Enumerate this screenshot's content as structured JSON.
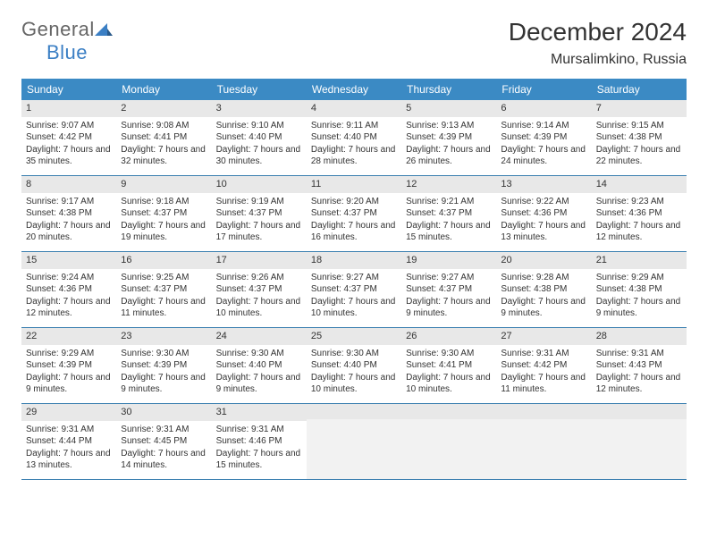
{
  "logo": {
    "text1": "General",
    "text2": "Blue"
  },
  "title": "December 2024",
  "location": "Mursalimkino, Russia",
  "colors": {
    "header_bg": "#3b8ac4",
    "header_text": "#ffffff",
    "daynum_bg": "#e8e8e8",
    "border": "#3b7fb0",
    "text": "#333333",
    "logo_blue": "#3b7fc4"
  },
  "dayHeaders": [
    "Sunday",
    "Monday",
    "Tuesday",
    "Wednesday",
    "Thursday",
    "Friday",
    "Saturday"
  ],
  "weeks": [
    [
      {
        "num": "1",
        "sunrise": "Sunrise: 9:07 AM",
        "sunset": "Sunset: 4:42 PM",
        "daylight": "Daylight: 7 hours and 35 minutes."
      },
      {
        "num": "2",
        "sunrise": "Sunrise: 9:08 AM",
        "sunset": "Sunset: 4:41 PM",
        "daylight": "Daylight: 7 hours and 32 minutes."
      },
      {
        "num": "3",
        "sunrise": "Sunrise: 9:10 AM",
        "sunset": "Sunset: 4:40 PM",
        "daylight": "Daylight: 7 hours and 30 minutes."
      },
      {
        "num": "4",
        "sunrise": "Sunrise: 9:11 AM",
        "sunset": "Sunset: 4:40 PM",
        "daylight": "Daylight: 7 hours and 28 minutes."
      },
      {
        "num": "5",
        "sunrise": "Sunrise: 9:13 AM",
        "sunset": "Sunset: 4:39 PM",
        "daylight": "Daylight: 7 hours and 26 minutes."
      },
      {
        "num": "6",
        "sunrise": "Sunrise: 9:14 AM",
        "sunset": "Sunset: 4:39 PM",
        "daylight": "Daylight: 7 hours and 24 minutes."
      },
      {
        "num": "7",
        "sunrise": "Sunrise: 9:15 AM",
        "sunset": "Sunset: 4:38 PM",
        "daylight": "Daylight: 7 hours and 22 minutes."
      }
    ],
    [
      {
        "num": "8",
        "sunrise": "Sunrise: 9:17 AM",
        "sunset": "Sunset: 4:38 PM",
        "daylight": "Daylight: 7 hours and 20 minutes."
      },
      {
        "num": "9",
        "sunrise": "Sunrise: 9:18 AM",
        "sunset": "Sunset: 4:37 PM",
        "daylight": "Daylight: 7 hours and 19 minutes."
      },
      {
        "num": "10",
        "sunrise": "Sunrise: 9:19 AM",
        "sunset": "Sunset: 4:37 PM",
        "daylight": "Daylight: 7 hours and 17 minutes."
      },
      {
        "num": "11",
        "sunrise": "Sunrise: 9:20 AM",
        "sunset": "Sunset: 4:37 PM",
        "daylight": "Daylight: 7 hours and 16 minutes."
      },
      {
        "num": "12",
        "sunrise": "Sunrise: 9:21 AM",
        "sunset": "Sunset: 4:37 PM",
        "daylight": "Daylight: 7 hours and 15 minutes."
      },
      {
        "num": "13",
        "sunrise": "Sunrise: 9:22 AM",
        "sunset": "Sunset: 4:36 PM",
        "daylight": "Daylight: 7 hours and 13 minutes."
      },
      {
        "num": "14",
        "sunrise": "Sunrise: 9:23 AM",
        "sunset": "Sunset: 4:36 PM",
        "daylight": "Daylight: 7 hours and 12 minutes."
      }
    ],
    [
      {
        "num": "15",
        "sunrise": "Sunrise: 9:24 AM",
        "sunset": "Sunset: 4:36 PM",
        "daylight": "Daylight: 7 hours and 12 minutes."
      },
      {
        "num": "16",
        "sunrise": "Sunrise: 9:25 AM",
        "sunset": "Sunset: 4:37 PM",
        "daylight": "Daylight: 7 hours and 11 minutes."
      },
      {
        "num": "17",
        "sunrise": "Sunrise: 9:26 AM",
        "sunset": "Sunset: 4:37 PM",
        "daylight": "Daylight: 7 hours and 10 minutes."
      },
      {
        "num": "18",
        "sunrise": "Sunrise: 9:27 AM",
        "sunset": "Sunset: 4:37 PM",
        "daylight": "Daylight: 7 hours and 10 minutes."
      },
      {
        "num": "19",
        "sunrise": "Sunrise: 9:27 AM",
        "sunset": "Sunset: 4:37 PM",
        "daylight": "Daylight: 7 hours and 9 minutes."
      },
      {
        "num": "20",
        "sunrise": "Sunrise: 9:28 AM",
        "sunset": "Sunset: 4:38 PM",
        "daylight": "Daylight: 7 hours and 9 minutes."
      },
      {
        "num": "21",
        "sunrise": "Sunrise: 9:29 AM",
        "sunset": "Sunset: 4:38 PM",
        "daylight": "Daylight: 7 hours and 9 minutes."
      }
    ],
    [
      {
        "num": "22",
        "sunrise": "Sunrise: 9:29 AM",
        "sunset": "Sunset: 4:39 PM",
        "daylight": "Daylight: 7 hours and 9 minutes."
      },
      {
        "num": "23",
        "sunrise": "Sunrise: 9:30 AM",
        "sunset": "Sunset: 4:39 PM",
        "daylight": "Daylight: 7 hours and 9 minutes."
      },
      {
        "num": "24",
        "sunrise": "Sunrise: 9:30 AM",
        "sunset": "Sunset: 4:40 PM",
        "daylight": "Daylight: 7 hours and 9 minutes."
      },
      {
        "num": "25",
        "sunrise": "Sunrise: 9:30 AM",
        "sunset": "Sunset: 4:40 PM",
        "daylight": "Daylight: 7 hours and 10 minutes."
      },
      {
        "num": "26",
        "sunrise": "Sunrise: 9:30 AM",
        "sunset": "Sunset: 4:41 PM",
        "daylight": "Daylight: 7 hours and 10 minutes."
      },
      {
        "num": "27",
        "sunrise": "Sunrise: 9:31 AM",
        "sunset": "Sunset: 4:42 PM",
        "daylight": "Daylight: 7 hours and 11 minutes."
      },
      {
        "num": "28",
        "sunrise": "Sunrise: 9:31 AM",
        "sunset": "Sunset: 4:43 PM",
        "daylight": "Daylight: 7 hours and 12 minutes."
      }
    ],
    [
      {
        "num": "29",
        "sunrise": "Sunrise: 9:31 AM",
        "sunset": "Sunset: 4:44 PM",
        "daylight": "Daylight: 7 hours and 13 minutes."
      },
      {
        "num": "30",
        "sunrise": "Sunrise: 9:31 AM",
        "sunset": "Sunset: 4:45 PM",
        "daylight": "Daylight: 7 hours and 14 minutes."
      },
      {
        "num": "31",
        "sunrise": "Sunrise: 9:31 AM",
        "sunset": "Sunset: 4:46 PM",
        "daylight": "Daylight: 7 hours and 15 minutes."
      },
      {
        "empty": true
      },
      {
        "empty": true
      },
      {
        "empty": true
      },
      {
        "empty": true
      }
    ]
  ]
}
